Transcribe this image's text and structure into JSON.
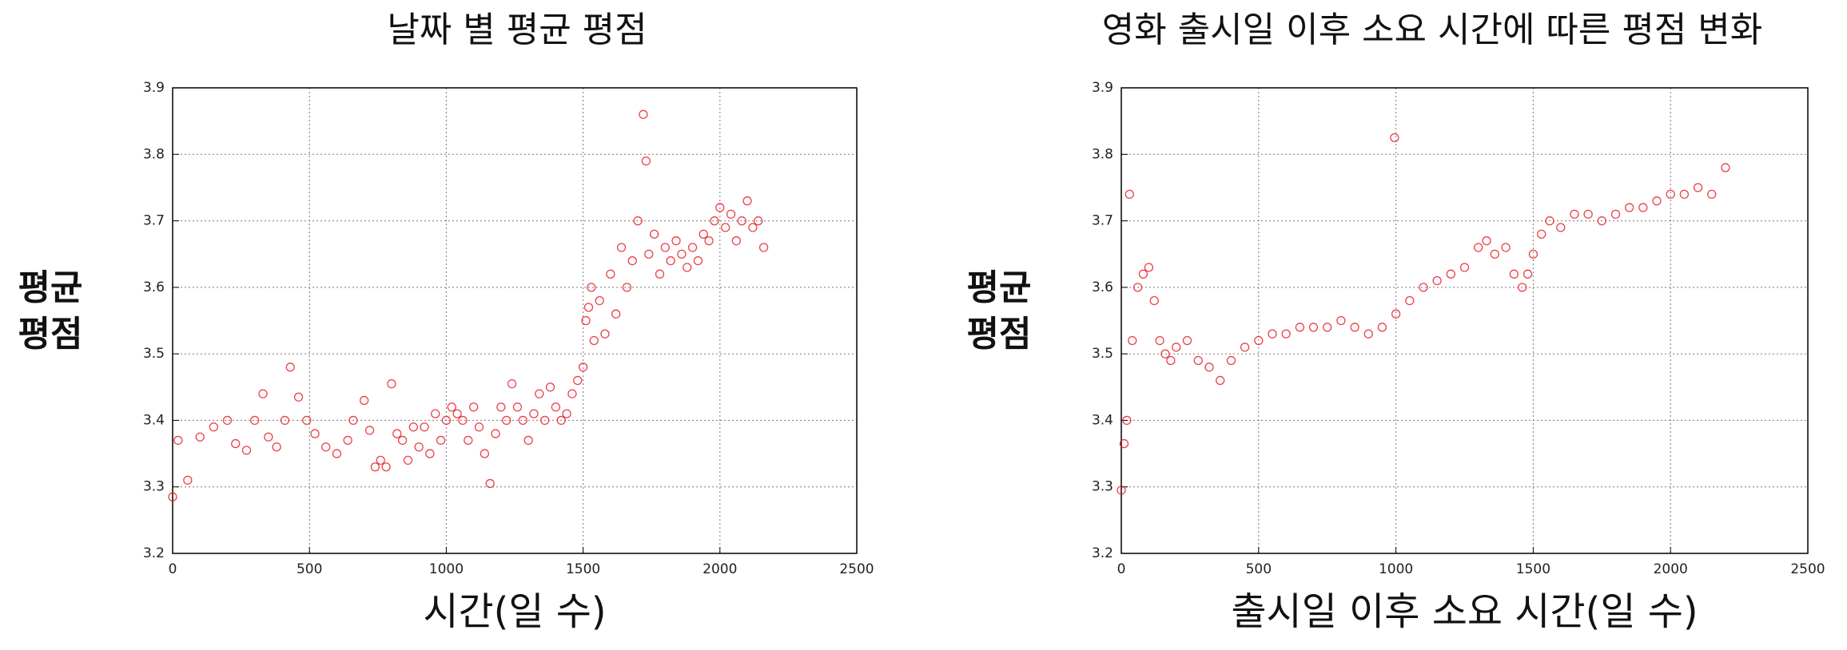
{
  "chart_data": [
    {
      "type": "scatter",
      "title": "날짜 별 평균 평점",
      "xlabel": "시간(일 수)",
      "ylabel": "평균\n평점",
      "color": "#e8101a",
      "grid": true,
      "xlim": [
        0,
        2500
      ],
      "xticks": [
        0,
        500,
        1000,
        1500,
        2000,
        2500
      ],
      "ylim": [
        3.2,
        3.9
      ],
      "yticks": [
        3.2,
        3.3,
        3.4,
        3.5,
        3.6,
        3.7,
        3.8,
        3.9
      ],
      "x": [
        0,
        20,
        55,
        100,
        150,
        200,
        230,
        270,
        300,
        330,
        350,
        380,
        410,
        430,
        460,
        490,
        520,
        560,
        600,
        640,
        660,
        700,
        720,
        740,
        760,
        780,
        800,
        820,
        840,
        860,
        880,
        900,
        920,
        940,
        960,
        980,
        1000,
        1020,
        1040,
        1060,
        1080,
        1100,
        1120,
        1140,
        1160,
        1180,
        1200,
        1220,
        1240,
        1260,
        1280,
        1300,
        1320,
        1340,
        1360,
        1380,
        1400,
        1420,
        1440,
        1460,
        1480,
        1500,
        1510,
        1520,
        1530,
        1540,
        1560,
        1580,
        1600,
        1620,
        1640,
        1660,
        1680,
        1700,
        1720,
        1730,
        1740,
        1760,
        1780,
        1800,
        1820,
        1840,
        1860,
        1880,
        1900,
        1920,
        1940,
        1960,
        1980,
        2000,
        2020,
        2040,
        2060,
        2080,
        2100,
        2120,
        2140,
        2160
      ],
      "values": [
        3.285,
        3.37,
        3.31,
        3.375,
        3.39,
        3.4,
        3.365,
        3.355,
        3.4,
        3.44,
        3.375,
        3.36,
        3.4,
        3.48,
        3.435,
        3.4,
        3.38,
        3.36,
        3.35,
        3.37,
        3.4,
        3.43,
        3.385,
        3.33,
        3.34,
        3.33,
        3.455,
        3.38,
        3.37,
        3.34,
        3.39,
        3.36,
        3.39,
        3.35,
        3.41,
        3.37,
        3.4,
        3.42,
        3.41,
        3.4,
        3.37,
        3.42,
        3.39,
        3.35,
        3.305,
        3.38,
        3.42,
        3.4,
        3.455,
        3.42,
        3.4,
        3.37,
        3.41,
        3.44,
        3.4,
        3.45,
        3.42,
        3.4,
        3.41,
        3.44,
        3.46,
        3.48,
        3.55,
        3.57,
        3.6,
        3.52,
        3.58,
        3.53,
        3.62,
        3.56,
        3.66,
        3.6,
        3.64,
        3.7,
        3.86,
        3.79,
        3.65,
        3.68,
        3.62,
        3.66,
        3.64,
        3.67,
        3.65,
        3.63,
        3.66,
        3.64,
        3.68,
        3.67,
        3.7,
        3.72,
        3.69,
        3.71,
        3.67,
        3.7,
        3.73,
        3.69,
        3.7,
        3.66
      ]
    },
    {
      "type": "scatter",
      "title": "영화 출시일 이후 소요 시간에 따른 평점 변화",
      "xlabel": "출시일 이후 소요 시간(일 수)",
      "ylabel": "평균\n평점",
      "color": "#e8101a",
      "grid": true,
      "xlim": [
        0,
        2500
      ],
      "xticks": [
        0,
        500,
        1000,
        1500,
        2000,
        2500
      ],
      "ylim": [
        3.2,
        3.9
      ],
      "yticks": [
        3.2,
        3.3,
        3.4,
        3.5,
        3.6,
        3.7,
        3.8,
        3.9
      ],
      "x": [
        0,
        10,
        20,
        30,
        40,
        60,
        80,
        100,
        120,
        140,
        160,
        180,
        200,
        240,
        280,
        320,
        360,
        400,
        450,
        500,
        550,
        600,
        650,
        700,
        750,
        800,
        850,
        900,
        950,
        1000,
        1050,
        1100,
        1150,
        1200,
        1250,
        1300,
        1330,
        1360,
        1400,
        1430,
        1460,
        1480,
        1500,
        1530,
        1560,
        1600,
        1650,
        1700,
        1750,
        1800,
        1850,
        1900,
        1950,
        2000,
        2050,
        2100,
        2150,
        2200,
        995
      ],
      "values": [
        3.295,
        3.365,
        3.4,
        3.74,
        3.52,
        3.6,
        3.62,
        3.63,
        3.58,
        3.52,
        3.5,
        3.49,
        3.51,
        3.52,
        3.49,
        3.48,
        3.46,
        3.49,
        3.51,
        3.52,
        3.53,
        3.53,
        3.54,
        3.54,
        3.54,
        3.55,
        3.54,
        3.53,
        3.54,
        3.56,
        3.58,
        3.6,
        3.61,
        3.62,
        3.63,
        3.66,
        3.67,
        3.65,
        3.66,
        3.62,
        3.6,
        3.62,
        3.65,
        3.68,
        3.7,
        3.69,
        3.71,
        3.71,
        3.7,
        3.71,
        3.72,
        3.72,
        3.73,
        3.74,
        3.74,
        3.75,
        3.74,
        3.78,
        3.825
      ]
    }
  ]
}
